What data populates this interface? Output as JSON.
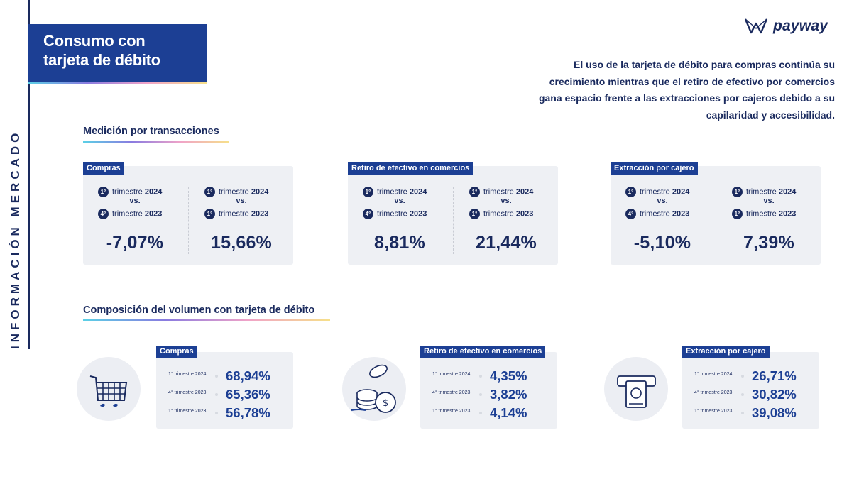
{
  "side_label": "INFORMACIÓN MERCADO",
  "title": {
    "line1": "Consumo con",
    "line2": "tarjeta de débito"
  },
  "brand": {
    "name": "payway",
    "icon": "payway-logo-icon"
  },
  "intro": "El uso de la tarjeta de débito para compras continúa su crecimiento mientras que el retiro de efectivo por comercios gana espacio frente a las extracciones por cajeros debido a su capilaridad y accesibilidad.",
  "section_transactions": "Medición por transacciones",
  "section_composition": "Composición del volumen con tarjeta de débito",
  "vs_label": "vs.",
  "transactions": [
    {
      "label": "Compras",
      "comparisons": [
        {
          "a_num": "1°",
          "a_text": "trimestre",
          "a_year": "2024",
          "b_num": "4°",
          "b_text": "trimestre",
          "b_year": "2023",
          "value": "-7,07%"
        },
        {
          "a_num": "1°",
          "a_text": "trimestre",
          "a_year": "2024",
          "b_num": "1°",
          "b_text": "trimestre",
          "b_year": "2023",
          "value": "15,66%"
        }
      ]
    },
    {
      "label": "Retiro de efectivo en comercios",
      "comparisons": [
        {
          "a_num": "1°",
          "a_text": "trimestre",
          "a_year": "2024",
          "b_num": "4°",
          "b_text": "trimestre",
          "b_year": "2023",
          "value": "8,81%"
        },
        {
          "a_num": "1°",
          "a_text": "trimestre",
          "a_year": "2024",
          "b_num": "1°",
          "b_text": "trimestre",
          "b_year": "2023",
          "value": "21,44%"
        }
      ]
    },
    {
      "label": "Extracción por cajero",
      "comparisons": [
        {
          "a_num": "1°",
          "a_text": "trimestre",
          "a_year": "2024",
          "b_num": "4°",
          "b_text": "trimestre",
          "b_year": "2023",
          "value": "-5,10%"
        },
        {
          "a_num": "1°",
          "a_text": "trimestre",
          "a_year": "2024",
          "b_num": "1°",
          "b_text": "trimestre",
          "b_year": "2023",
          "value": "7,39%"
        }
      ]
    }
  ],
  "composition": [
    {
      "label": "Compras",
      "icon": "shopping-cart-icon",
      "rows": [
        {
          "period": "1° trimestre 2024",
          "value": "68,94%"
        },
        {
          "period": "4° trimestre 2023",
          "value": "65,36%"
        },
        {
          "period": "1° trimestre 2023",
          "value": "56,78%"
        }
      ]
    },
    {
      "label": "Retiro de efectivo en comercios",
      "icon": "coins-icon",
      "rows": [
        {
          "period": "1° trimestre 2024",
          "value": "4,35%"
        },
        {
          "period": "4° trimestre 2023",
          "value": "3,82%"
        },
        {
          "period": "1° trimestre 2023",
          "value": "4,14%"
        }
      ]
    },
    {
      "label": "Extracción por cajero",
      "icon": "atm-cash-icon",
      "rows": [
        {
          "period": "1° trimestre 2024",
          "value": "26,71%"
        },
        {
          "period": "4° trimestre 2023",
          "value": "30,82%"
        },
        {
          "period": "1° trimestre 2023",
          "value": "39,08%"
        }
      ]
    }
  ],
  "colors": {
    "navy": "#1a2a5e",
    "brand_blue": "#1c3f94",
    "card_bg": "#eef0f4"
  }
}
